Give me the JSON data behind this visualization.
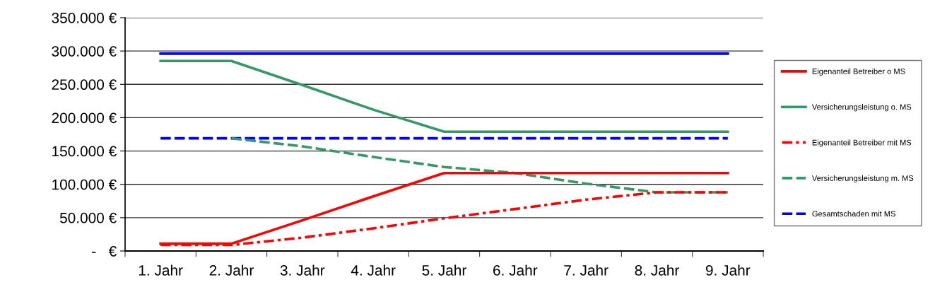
{
  "chart_data": {
    "type": "line",
    "categories": [
      "1. Jahr",
      "2. Jahr",
      "3. Jahr",
      "4. Jahr",
      "5. Jahr",
      "6. Jahr",
      "7. Jahr",
      "8. Jahr",
      "9. Jahr"
    ],
    "series": [
      {
        "color": "#0000ff",
        "line_style": "solid",
        "values": [
          296000,
          296000,
          296000,
          296000,
          296000,
          296000,
          296000,
          296000,
          296000
        ]
      },
      {
        "name": "Eigenanteil Betreiber o MS",
        "color": "#ff0000",
        "line_style": "solid",
        "values": [
          11000,
          11000,
          46000,
          82000,
          117000,
          117000,
          117000,
          117000,
          117000
        ]
      },
      {
        "name": "Versicherungsleistung o. MS",
        "color": "#339966",
        "line_style": "solid",
        "values": [
          285000,
          285000,
          249000,
          212000,
          179000,
          179000,
          179000,
          179000,
          179000
        ]
      },
      {
        "name": "Eigenanteil Betreiber mit MS",
        "color": "#ff0000",
        "line_style": "dashdot",
        "values": [
          9000,
          9000,
          20000,
          34000,
          49000,
          63000,
          77000,
          88000,
          88000
        ]
      },
      {
        "name": "Versicherungsleistung m. MS",
        "color": "#339966",
        "line_style": "dashed",
        "values": [
          null,
          169000,
          157000,
          141000,
          126000,
          117000,
          101000,
          88000,
          88000
        ]
      },
      {
        "name": "Gesamtschaden mit MS",
        "color": "#0000ff",
        "line_style": "dashed",
        "values": [
          169000,
          169000,
          169000,
          169000,
          169000,
          169000,
          169000,
          169000,
          169000
        ]
      }
    ],
    "ylim": [
      0,
      350000
    ],
    "yticks": [
      {
        "value": 0,
        "label": "-   €"
      },
      {
        "value": 50000,
        "label": "50.000 €"
      },
      {
        "value": 100000,
        "label": "100.000 €"
      },
      {
        "value": 150000,
        "label": "150.000 €"
      },
      {
        "value": 200000,
        "label": "200.000 €"
      },
      {
        "value": 250000,
        "label": "250.000 €"
      },
      {
        "value": 300000,
        "label": "300.000 €"
      },
      {
        "value": 350000,
        "label": "350.000 €"
      }
    ],
    "grid": "y",
    "legend": "right",
    "marker": "none"
  }
}
